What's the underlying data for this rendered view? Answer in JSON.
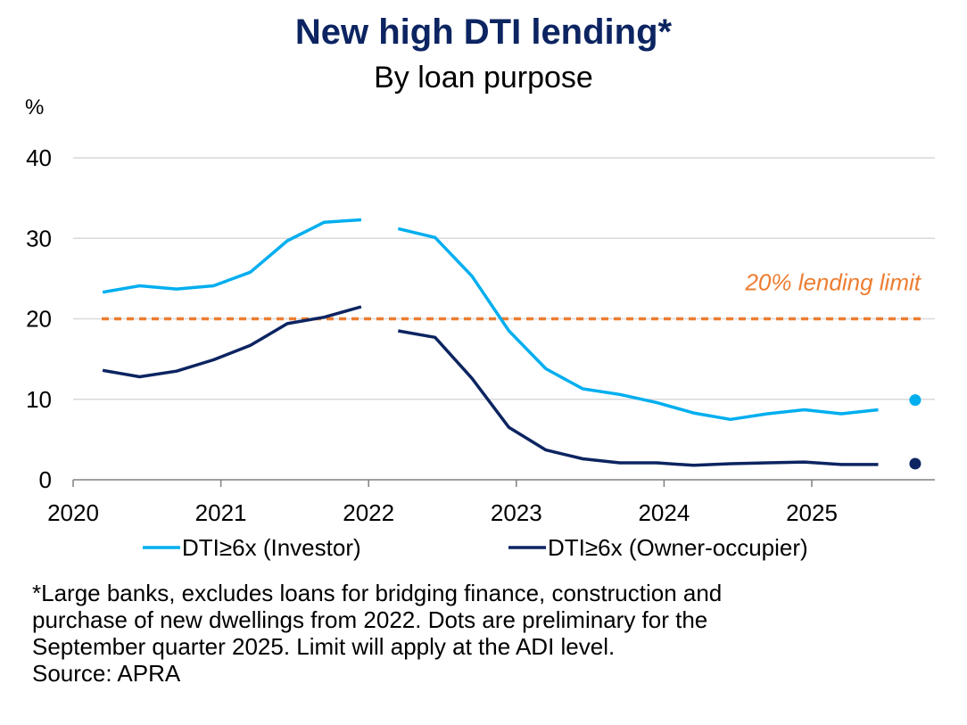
{
  "chart_data": {
    "type": "line",
    "title": "New high DTI lending*",
    "subtitle": "By loan purpose",
    "ylabel": "%",
    "ylim": [
      0,
      40
    ],
    "yticks": [
      0,
      10,
      20,
      30,
      40
    ],
    "xlim": [
      2020,
      2025.85
    ],
    "xticks": [
      "2020",
      "2021",
      "2022",
      "2023",
      "2024",
      "2025"
    ],
    "grid": true,
    "legend_position": "bottom",
    "x": [
      "2020-Q1",
      "2020-Q2",
      "2020-Q3",
      "2020-Q4",
      "2021-Q1",
      "2021-Q2",
      "2021-Q3",
      "2021-Q4",
      "2022-Q1",
      "2022-Q2",
      "2022-Q3",
      "2022-Q4",
      "2023-Q1",
      "2023-Q2",
      "2023-Q3",
      "2023-Q4",
      "2024-Q1",
      "2024-Q2",
      "2024-Q3",
      "2024-Q4",
      "2025-Q1",
      "2025-Q2"
    ],
    "series": [
      {
        "name": "DTI≥6x (Investor)",
        "color": "#00aeef",
        "values": [
          23.3,
          24.1,
          23.7,
          24.1,
          25.8,
          29.7,
          32.0,
          32.3,
          31.2,
          30.1,
          25.3,
          18.5,
          13.8,
          11.3,
          10.6,
          9.6,
          8.3,
          7.5,
          8.2,
          8.7,
          8.2,
          8.7
        ],
        "break_after": "2021-Q4",
        "preliminary": {
          "x": "2025-Q3",
          "value": 9.9
        }
      },
      {
        "name": "DTI≥6x (Owner-occupier)",
        "color": "#0c2461",
        "values": [
          13.6,
          12.8,
          13.5,
          14.9,
          16.7,
          19.4,
          20.2,
          21.5,
          18.5,
          17.7,
          12.6,
          6.5,
          3.7,
          2.6,
          2.1,
          2.1,
          1.8,
          2.0,
          2.1,
          2.2,
          1.9,
          1.9
        ],
        "break_after": "2021-Q4",
        "preliminary": {
          "x": "2025-Q3",
          "value": 2.0
        }
      }
    ],
    "annotations": [
      {
        "text": "20% lending limit",
        "y": 20,
        "color": "#ed7d31",
        "style": "dashed"
      }
    ]
  },
  "footnote": [
    "*Large banks, excludes loans for bridging finance, construction and",
    "purchase of new dwellings from 2022. Dots are preliminary for the",
    "September quarter 2025. Limit will apply at the ADI level.",
    "Source: APRA"
  ]
}
